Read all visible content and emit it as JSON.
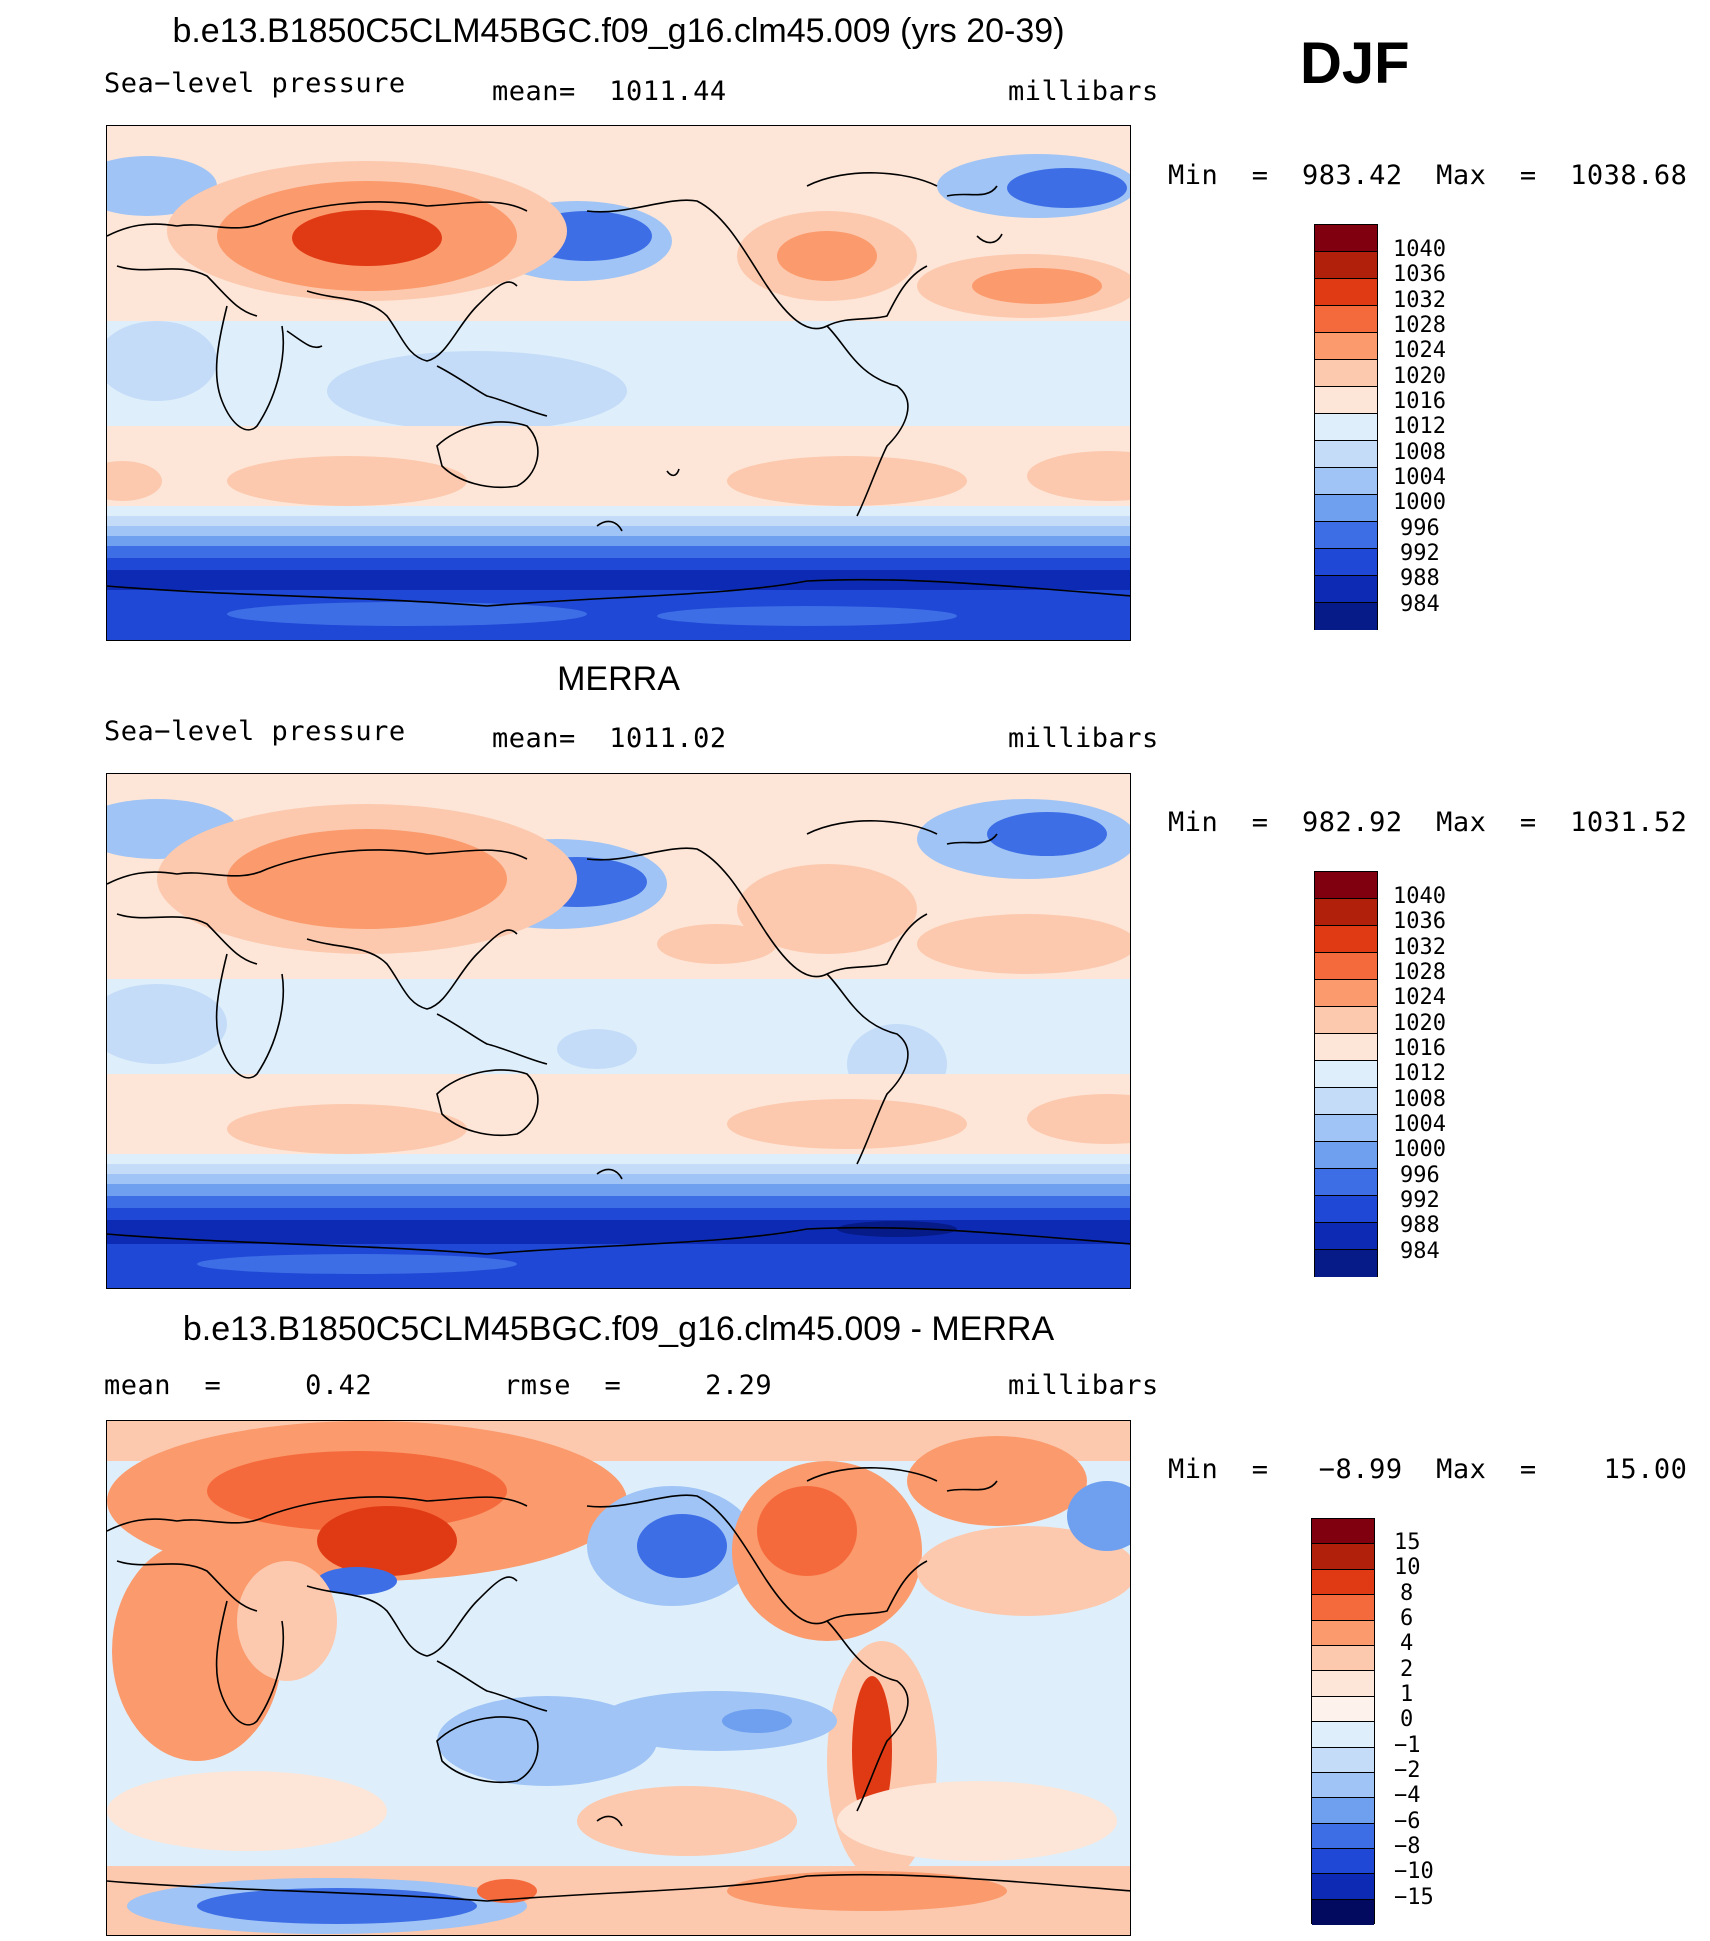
{
  "season": "DJF",
  "panels": [
    {
      "title": "b.e13.B1850C5CLM45BGC.f09_g16.clm45.009 (yrs 20-39)",
      "left_label": "Sea−level pressure",
      "center_label": "mean=  1011.44",
      "units": "millibars",
      "minmax": "Min  =  983.42  Max  =  1038.68",
      "colorbar_labels": [
        "1040",
        "1036",
        "1032",
        "1028",
        "1024",
        "1020",
        "1016",
        "1012",
        "1008",
        "1004",
        "1000",
        "996",
        "992",
        "988",
        "984"
      ]
    },
    {
      "title": "MERRA",
      "left_label": "Sea−level pressure",
      "center_label": "mean=  1011.02",
      "units": "millibars",
      "minmax": "Min  =  982.92  Max  =  1031.52",
      "colorbar_labels": [
        "1040",
        "1036",
        "1032",
        "1028",
        "1024",
        "1020",
        "1016",
        "1012",
        "1008",
        "1004",
        "1000",
        "996",
        "992",
        "988",
        "984"
      ]
    },
    {
      "title": "b.e13.B1850C5CLM45BGC.f09_g16.clm45.009 - MERRA",
      "left_label": "mean  =     0.42",
      "center_label": "rmse  =     2.29",
      "units": "millibars",
      "minmax": "Min  =   −8.99  Max  =    15.00",
      "colorbar_labels": [
        "15",
        "10",
        "8",
        "6",
        "4",
        "2",
        "1",
        "0",
        "−1",
        "−2",
        "−4",
        "−6",
        "−8",
        "−10",
        "−15"
      ]
    }
  ],
  "colors": {
    "abs_scale": [
      "#80000f",
      "#b0200a",
      "#e03a15",
      "#f56a3c",
      "#fb9a6c",
      "#fcc9ae",
      "#fde6d8",
      "#deeffb",
      "#c4dcf8",
      "#9fc4f5",
      "#6ea0ef",
      "#3d6ee6",
      "#1f48d6",
      "#0d2ab5",
      "#061b87"
    ],
    "diff_scale": [
      "#80000f",
      "#b0200a",
      "#e03a15",
      "#f56a3c",
      "#fb9a6c",
      "#fcc9ae",
      "#fde6d8",
      "#deeffb",
      "#c4dcf8",
      "#9fc4f5",
      "#6ea0ef",
      "#3d6ee6",
      "#1f48d6",
      "#0d2ab5",
      "#061b87",
      "#020a60"
    ]
  },
  "chart_data": [
    {
      "type": "heatmap",
      "title": "b.e13.B1850C5CLM45BGC.f09_g16.clm45.009 (yrs 20-39)",
      "variable": "Sea−level pressure",
      "units": "millibars",
      "mean": 1011.44,
      "min": 983.42,
      "max": 1038.68,
      "contour_levels": [
        984,
        988,
        992,
        996,
        1000,
        1004,
        1008,
        1012,
        1016,
        1020,
        1024,
        1028,
        1032,
        1036,
        1040
      ]
    },
    {
      "type": "heatmap",
      "title": "MERRA",
      "variable": "Sea−level pressure",
      "units": "millibars",
      "mean": 1011.02,
      "min": 982.92,
      "max": 1031.52,
      "contour_levels": [
        984,
        988,
        992,
        996,
        1000,
        1004,
        1008,
        1012,
        1016,
        1020,
        1024,
        1028,
        1032,
        1036,
        1040
      ]
    },
    {
      "type": "heatmap",
      "title": "b.e13.B1850C5CLM45BGC.f09_g16.clm45.009 - MERRA",
      "units": "millibars",
      "mean": 0.42,
      "rmse": 2.29,
      "min": -8.99,
      "max": 15.0,
      "contour_levels": [
        -15,
        -10,
        -8,
        -6,
        -4,
        -2,
        -1,
        0,
        1,
        2,
        4,
        6,
        8,
        10,
        15
      ]
    }
  ]
}
